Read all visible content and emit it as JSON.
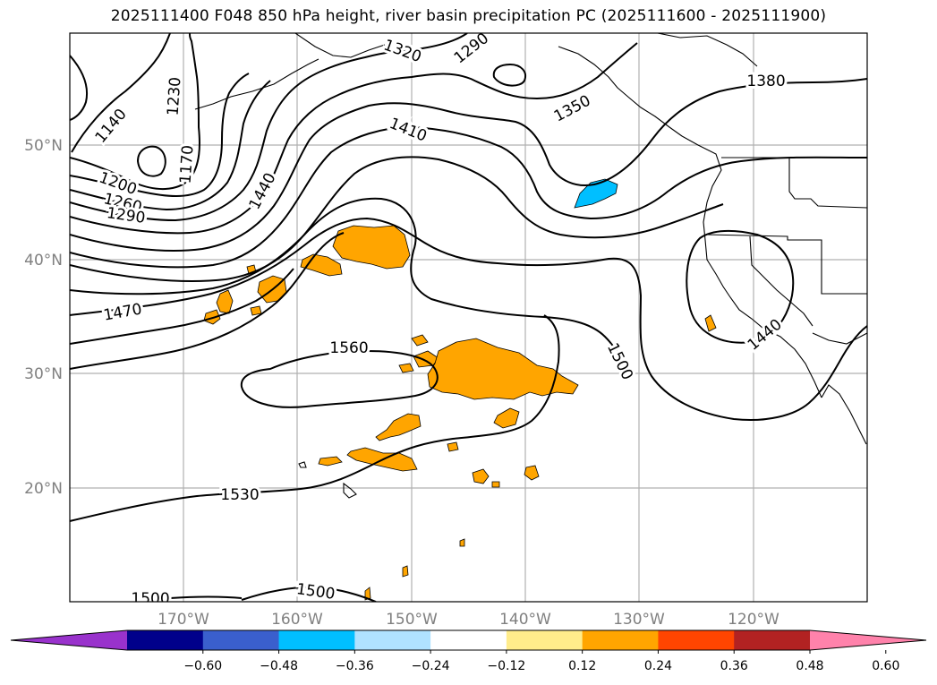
{
  "title": "2025111400 F048 850 hPa height, river basin precipitation PC (2025111600 - 2025111900)",
  "latitude_labels": [
    "50°N",
    "40°N",
    "30°N",
    "20°N"
  ],
  "longitude_labels": [
    "170°W",
    "160°W",
    "150°W",
    "140°W",
    "130°W",
    "120°W"
  ],
  "height_contour_labels": [
    "1230",
    "1140",
    "1320",
    "1290",
    "1350",
    "1380",
    "1410",
    "1200",
    "1260",
    "1290",
    "1170",
    "1440",
    "1470",
    "1560",
    "1500",
    "1440",
    "1530",
    "1500",
    "1500"
  ],
  "colorbar": {
    "ticks": [
      "−0.60",
      "−0.48",
      "−0.36",
      "−0.24",
      "−0.12",
      "0.12",
      "0.24",
      "0.36",
      "0.48",
      "0.60"
    ],
    "colors": [
      "#9932cc",
      "#00008b",
      "#3a5fcd",
      "#00bfff",
      "#b0e2ff",
      "#ffffff",
      "#ffec8b",
      "#ffa500",
      "#ff4500",
      "#b22222",
      "#ff82ab"
    ]
  },
  "precip_colors": {
    "positive": "#ffa500",
    "negative": "#00bfff"
  }
}
